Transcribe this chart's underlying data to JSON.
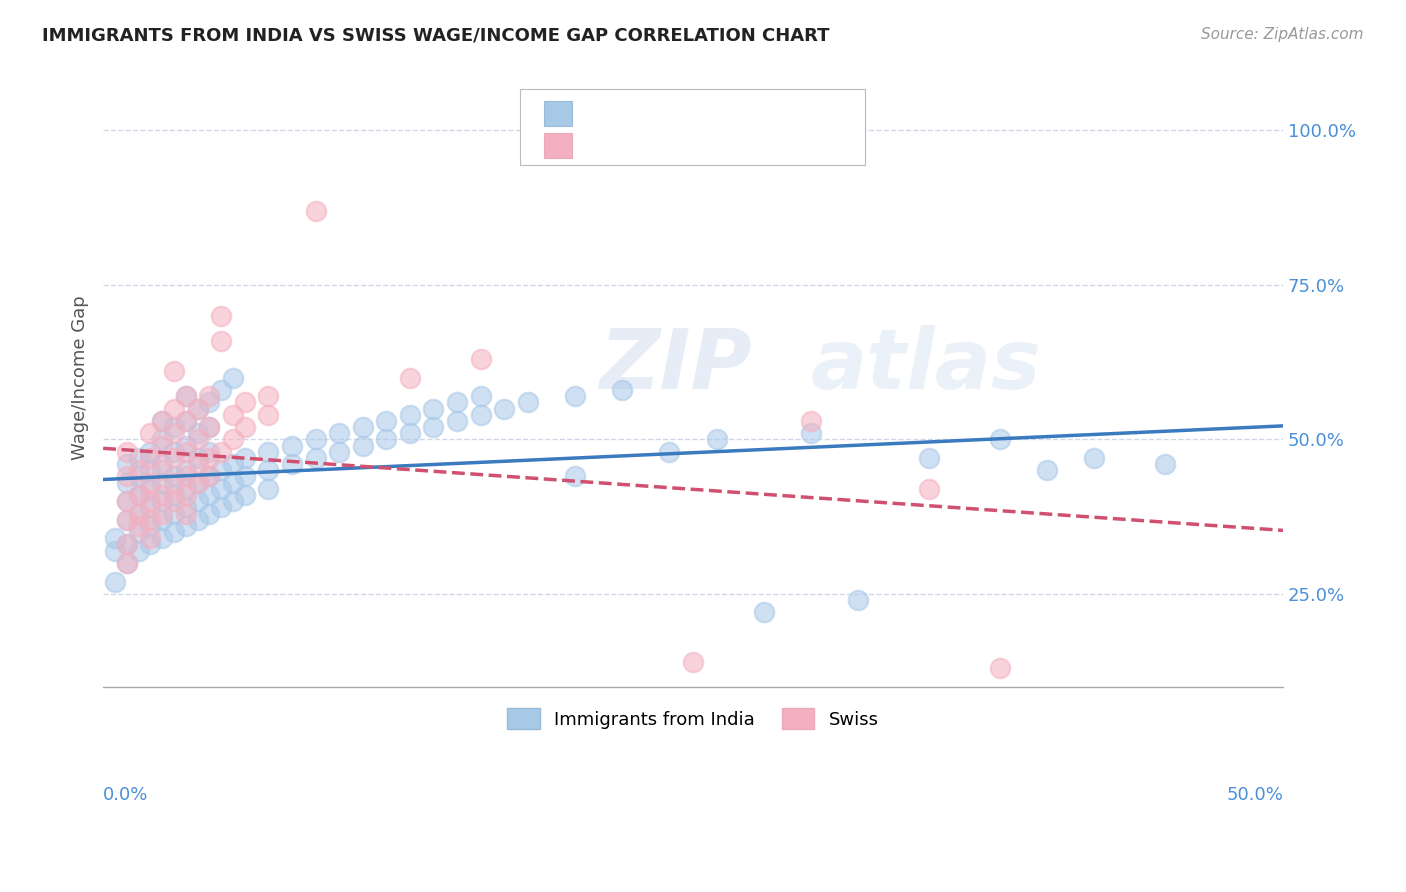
{
  "title": "IMMIGRANTS FROM INDIA VS SWISS WAGE/INCOME GAP CORRELATION CHART",
  "source": "Source: ZipAtlas.com",
  "ylabel": "Wage/Income Gap",
  "yticks": [
    "25.0%",
    "50.0%",
    "75.0%",
    "100.0%"
  ],
  "ytick_vals": [
    0.25,
    0.5,
    0.75,
    1.0
  ],
  "xlim": [
    0.0,
    0.5
  ],
  "ylim": [
    0.1,
    1.1
  ],
  "watermark": "ZIPAtlas",
  "blue_color": "#a8c8e8",
  "pink_color": "#f4b0c0",
  "blue_line_color": "#3a7abf",
  "pink_line_color": "#d05070",
  "tick_color": "#4a90d9",
  "background_color": "#ffffff",
  "grid_color": "#d0d8e8",
  "title_color": "#222222",
  "blue_scatter": [
    [
      0.005,
      0.32
    ],
    [
      0.005,
      0.34
    ],
    [
      0.005,
      0.27
    ],
    [
      0.01,
      0.37
    ],
    [
      0.01,
      0.4
    ],
    [
      0.01,
      0.43
    ],
    [
      0.01,
      0.46
    ],
    [
      0.01,
      0.3
    ],
    [
      0.01,
      0.33
    ],
    [
      0.015,
      0.38
    ],
    [
      0.015,
      0.41
    ],
    [
      0.015,
      0.44
    ],
    [
      0.015,
      0.47
    ],
    [
      0.015,
      0.35
    ],
    [
      0.015,
      0.32
    ],
    [
      0.02,
      0.39
    ],
    [
      0.02,
      0.42
    ],
    [
      0.02,
      0.45
    ],
    [
      0.02,
      0.48
    ],
    [
      0.02,
      0.36
    ],
    [
      0.02,
      0.33
    ],
    [
      0.025,
      0.4
    ],
    [
      0.025,
      0.43
    ],
    [
      0.025,
      0.46
    ],
    [
      0.025,
      0.5
    ],
    [
      0.025,
      0.53
    ],
    [
      0.025,
      0.37
    ],
    [
      0.025,
      0.34
    ],
    [
      0.03,
      0.41
    ],
    [
      0.03,
      0.44
    ],
    [
      0.03,
      0.48
    ],
    [
      0.03,
      0.52
    ],
    [
      0.03,
      0.38
    ],
    [
      0.03,
      0.35
    ],
    [
      0.035,
      0.42
    ],
    [
      0.035,
      0.45
    ],
    [
      0.035,
      0.49
    ],
    [
      0.035,
      0.53
    ],
    [
      0.035,
      0.57
    ],
    [
      0.035,
      0.39
    ],
    [
      0.035,
      0.36
    ],
    [
      0.04,
      0.43
    ],
    [
      0.04,
      0.47
    ],
    [
      0.04,
      0.51
    ],
    [
      0.04,
      0.55
    ],
    [
      0.04,
      0.4
    ],
    [
      0.04,
      0.37
    ],
    [
      0.045,
      0.44
    ],
    [
      0.045,
      0.48
    ],
    [
      0.045,
      0.52
    ],
    [
      0.045,
      0.56
    ],
    [
      0.045,
      0.41
    ],
    [
      0.045,
      0.38
    ],
    [
      0.05,
      0.58
    ],
    [
      0.05,
      0.45
    ],
    [
      0.05,
      0.42
    ],
    [
      0.05,
      0.39
    ],
    [
      0.055,
      0.6
    ],
    [
      0.055,
      0.46
    ],
    [
      0.055,
      0.43
    ],
    [
      0.055,
      0.4
    ],
    [
      0.06,
      0.47
    ],
    [
      0.06,
      0.44
    ],
    [
      0.06,
      0.41
    ],
    [
      0.07,
      0.48
    ],
    [
      0.07,
      0.45
    ],
    [
      0.07,
      0.42
    ],
    [
      0.08,
      0.49
    ],
    [
      0.08,
      0.46
    ],
    [
      0.09,
      0.5
    ],
    [
      0.09,
      0.47
    ],
    [
      0.1,
      0.51
    ],
    [
      0.1,
      0.48
    ],
    [
      0.11,
      0.52
    ],
    [
      0.11,
      0.49
    ],
    [
      0.12,
      0.53
    ],
    [
      0.12,
      0.5
    ],
    [
      0.13,
      0.54
    ],
    [
      0.13,
      0.51
    ],
    [
      0.14,
      0.55
    ],
    [
      0.14,
      0.52
    ],
    [
      0.15,
      0.56
    ],
    [
      0.15,
      0.53
    ],
    [
      0.16,
      0.57
    ],
    [
      0.16,
      0.54
    ],
    [
      0.17,
      0.55
    ],
    [
      0.18,
      0.56
    ],
    [
      0.2,
      0.57
    ],
    [
      0.2,
      0.44
    ],
    [
      0.22,
      0.58
    ],
    [
      0.24,
      0.48
    ],
    [
      0.26,
      0.5
    ],
    [
      0.28,
      0.22
    ],
    [
      0.3,
      0.51
    ],
    [
      0.32,
      0.24
    ],
    [
      0.35,
      0.47
    ],
    [
      0.38,
      0.5
    ],
    [
      0.4,
      0.45
    ],
    [
      0.42,
      0.47
    ],
    [
      0.45,
      0.46
    ]
  ],
  "pink_scatter": [
    [
      0.01,
      0.37
    ],
    [
      0.01,
      0.4
    ],
    [
      0.01,
      0.44
    ],
    [
      0.01,
      0.48
    ],
    [
      0.01,
      0.33
    ],
    [
      0.01,
      0.3
    ],
    [
      0.015,
      0.38
    ],
    [
      0.015,
      0.41
    ],
    [
      0.015,
      0.45
    ],
    [
      0.015,
      0.36
    ],
    [
      0.02,
      0.4
    ],
    [
      0.02,
      0.43
    ],
    [
      0.02,
      0.47
    ],
    [
      0.02,
      0.51
    ],
    [
      0.02,
      0.37
    ],
    [
      0.02,
      0.34
    ],
    [
      0.025,
      0.41
    ],
    [
      0.025,
      0.45
    ],
    [
      0.025,
      0.49
    ],
    [
      0.025,
      0.53
    ],
    [
      0.025,
      0.38
    ],
    [
      0.03,
      0.43
    ],
    [
      0.03,
      0.47
    ],
    [
      0.03,
      0.51
    ],
    [
      0.03,
      0.55
    ],
    [
      0.03,
      0.61
    ],
    [
      0.03,
      0.4
    ],
    [
      0.035,
      0.44
    ],
    [
      0.035,
      0.48
    ],
    [
      0.035,
      0.53
    ],
    [
      0.035,
      0.57
    ],
    [
      0.035,
      0.41
    ],
    [
      0.035,
      0.38
    ],
    [
      0.04,
      0.46
    ],
    [
      0.04,
      0.5
    ],
    [
      0.04,
      0.55
    ],
    [
      0.04,
      0.43
    ],
    [
      0.045,
      0.47
    ],
    [
      0.045,
      0.52
    ],
    [
      0.045,
      0.57
    ],
    [
      0.045,
      0.44
    ],
    [
      0.05,
      0.66
    ],
    [
      0.05,
      0.7
    ],
    [
      0.05,
      0.48
    ],
    [
      0.055,
      0.54
    ],
    [
      0.055,
      0.5
    ],
    [
      0.06,
      0.56
    ],
    [
      0.06,
      0.52
    ],
    [
      0.07,
      0.57
    ],
    [
      0.07,
      0.54
    ],
    [
      0.09,
      0.87
    ],
    [
      0.13,
      0.6
    ],
    [
      0.16,
      0.63
    ],
    [
      0.25,
      0.14
    ],
    [
      0.3,
      0.53
    ],
    [
      0.35,
      0.42
    ],
    [
      0.38,
      0.13
    ]
  ]
}
